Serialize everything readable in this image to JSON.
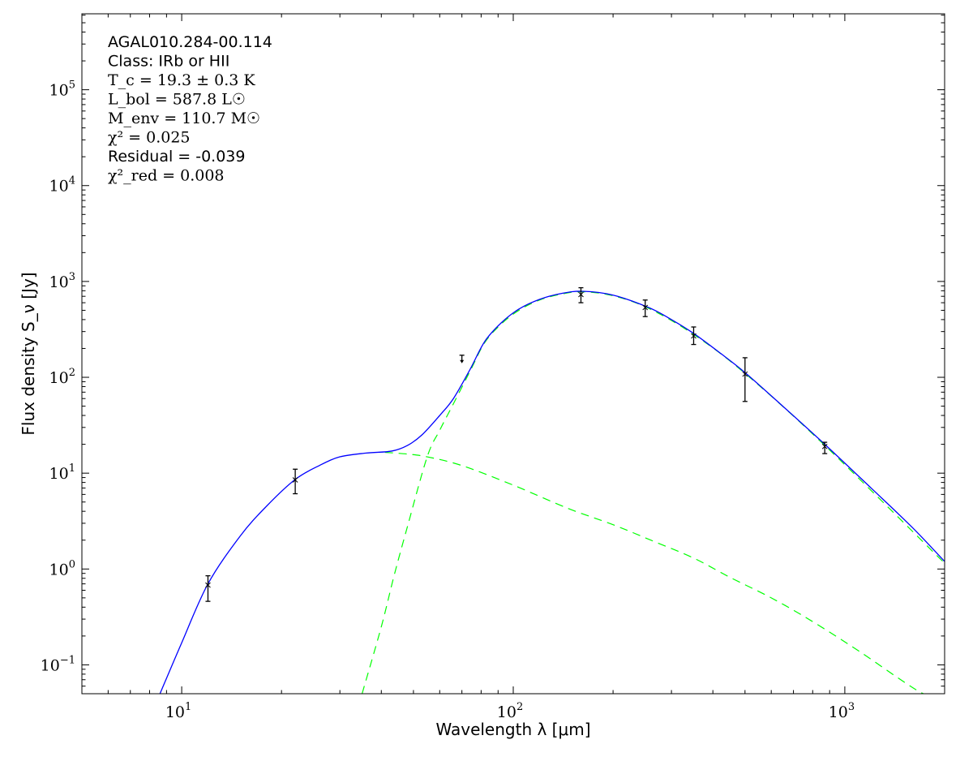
{
  "chart_data": {
    "type": "line",
    "xlabel": "Wavelength λ [μm]",
    "ylabel": "Flux density S_ν [Jy]",
    "xscale": "log",
    "yscale": "log",
    "xlim": [
      5,
      2000
    ],
    "ylim": [
      0.05,
      620000
    ],
    "x_tick_labels": [
      {
        "value": 10,
        "base": "10",
        "exp": "1"
      },
      {
        "value": 100,
        "base": "10",
        "exp": "2"
      },
      {
        "value": 1000,
        "base": "10",
        "exp": "3"
      }
    ],
    "y_tick_labels": [
      {
        "value": 0.1,
        "base": "10",
        "exp": "−1"
      },
      {
        "value": 1,
        "base": "10",
        "exp": "0"
      },
      {
        "value": 10,
        "base": "10",
        "exp": "1"
      },
      {
        "value": 100,
        "base": "10",
        "exp": "2"
      },
      {
        "value": 1000,
        "base": "10",
        "exp": "3"
      },
      {
        "value": 10000,
        "base": "10",
        "exp": "4"
      },
      {
        "value": 100000,
        "base": "10",
        "exp": "5"
      }
    ],
    "grid": false,
    "annotations": [
      {
        "text": "AGAL010.284-00.114",
        "style": "sans"
      },
      {
        "text": "Class: IRb or HII",
        "style": "sans"
      },
      {
        "text": "T_c = 19.3 ± 0.3 K",
        "style": "math"
      },
      {
        "text": "L_bol = 587.8 L☉",
        "style": "math"
      },
      {
        "text": "M_env = 110.7 M☉",
        "style": "math"
      },
      {
        "text": "χ² = 0.025",
        "style": "math"
      },
      {
        "text": "Residual = -0.039",
        "style": "sans"
      },
      {
        "text": "χ²_red = 0.008",
        "style": "math"
      }
    ],
    "measurements": [
      {
        "x": 12,
        "y": 0.68,
        "yerr_low": 0.46,
        "yerr_high": 0.85
      },
      {
        "x": 22,
        "y": 8.5,
        "yerr_low": 6.1,
        "yerr_high": 11
      },
      {
        "x": 160,
        "y": 730,
        "yerr_low": 600,
        "yerr_high": 860
      },
      {
        "x": 250,
        "y": 535,
        "yerr_low": 430,
        "yerr_high": 640
      },
      {
        "x": 350,
        "y": 270,
        "yerr_low": 220,
        "yerr_high": 335
      },
      {
        "x": 500,
        "y": 108,
        "yerr_low": 56,
        "yerr_high": 160
      },
      {
        "x": 870,
        "y": 19,
        "yerr_low": 16,
        "yerr_high": 21
      }
    ],
    "upper_limits": [
      {
        "x": 70,
        "y": 170
      }
    ],
    "series": [
      {
        "style": "solid",
        "color": "#0000ff",
        "x": [
          8.6,
          10,
          12,
          15,
          18,
          22,
          26,
          30,
          36,
          43,
          48,
          53,
          60,
          66,
          74,
          82,
          92,
          104,
          120,
          140,
          162,
          200,
          256,
          300,
          350,
          420,
          500,
          650,
          870,
          1200,
          1600,
          2000
        ],
        "y": [
          0.05,
          0.17,
          0.7,
          2.2,
          4.5,
          8.6,
          12,
          14.8,
          16.2,
          17,
          19.5,
          25,
          40,
          60,
          120,
          236,
          370,
          515,
          650,
          750,
          790,
          720,
          535,
          400,
          287,
          180,
          112,
          50,
          20,
          7,
          2.7,
          1.2
        ]
      },
      {
        "style": "dashed",
        "color": "#00ff00",
        "x": [
          35,
          40,
          43.7,
          48,
          55,
          60,
          66,
          74,
          82,
          92,
          104,
          120,
          140,
          162,
          200,
          256,
          350,
          500,
          870,
          2000
        ],
        "y": [
          0.05,
          0.25,
          0.85,
          2.8,
          14.8,
          28,
          53,
          115,
          230,
          360,
          500,
          640,
          740,
          780,
          710,
          525,
          280,
          110,
          19.5,
          1.15
        ]
      },
      {
        "style": "dashed",
        "color": "#00ff00",
        "x": [
          41,
          48,
          55,
          70,
          100,
          146,
          200,
          260,
          350,
          450,
          600,
          790,
          1100,
          1640,
          1900
        ],
        "y": [
          16.5,
          15.8,
          14.8,
          12,
          7.5,
          4.3,
          2.9,
          2.0,
          1.3,
          0.82,
          0.5,
          0.29,
          0.14,
          0.055,
          0.045
        ]
      }
    ]
  }
}
